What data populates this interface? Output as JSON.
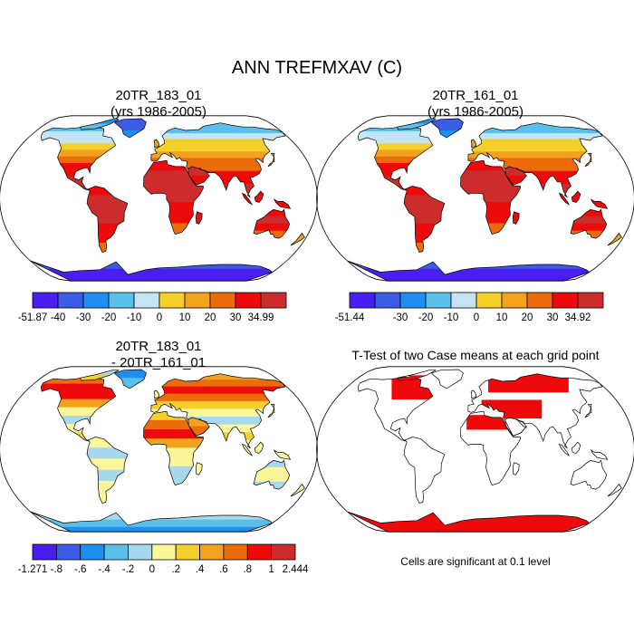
{
  "title": "ANN TREFMXAV (C)",
  "panels": [
    {
      "id": "case1",
      "title_line1": "20TR_183_01",
      "title_line2": "(yrs 1986-2005)",
      "field": "absolute",
      "colorbar": {
        "colors": [
          "#4a1ef0",
          "#3c5ce6",
          "#1e8ff0",
          "#5ac0ea",
          "#c4e4f4",
          "#f6d02a",
          "#f2a21c",
          "#ec6c0c",
          "#ee0a0a",
          "#cc2c2c"
        ],
        "labels": [
          "-51.87",
          "-40",
          "-30",
          "-20",
          "-10",
          "0",
          "10",
          "20",
          "30",
          "34.99"
        ]
      }
    },
    {
      "id": "case2",
      "title_line1": "20TR_161_01",
      "title_line2": "(yrs 1986-2005)",
      "field": "absolute",
      "colorbar": {
        "colors": [
          "#4a1ef0",
          "#3c5ce6",
          "#1e8ff0",
          "#5ac0ea",
          "#c4e4f4",
          "#f6d02a",
          "#f2a21c",
          "#ec6c0c",
          "#ee0a0a",
          "#cc2c2c"
        ],
        "labels": [
          "-51.44",
          "",
          "-30",
          "-20",
          "-10",
          "0",
          "10",
          "20",
          "30",
          "34.92"
        ]
      }
    },
    {
      "id": "diff",
      "title_line1": "20TR_183_01",
      "title_line2": "- 20TR_161_01",
      "field": "difference",
      "colorbar": {
        "colors": [
          "#4a1ef0",
          "#3c5ce6",
          "#1e8ff0",
          "#5ac0ea",
          "#a8d8ee",
          "#fcf69a",
          "#f6d02a",
          "#f2a21c",
          "#ec6c0c",
          "#ee0a0a",
          "#cc2c2c"
        ],
        "labels": [
          "-1.271",
          "-.8",
          "-.6",
          "-.4",
          "-.2",
          "0",
          ".2",
          ".4",
          ".6",
          ".8",
          "1",
          "2.444"
        ]
      }
    },
    {
      "id": "ttest",
      "title_line1": "T-Test of two Case means at each grid point",
      "note": "Cells are significant at 0.1 level",
      "field": "significance",
      "significant_color": "#ee0a0a"
    }
  ]
}
